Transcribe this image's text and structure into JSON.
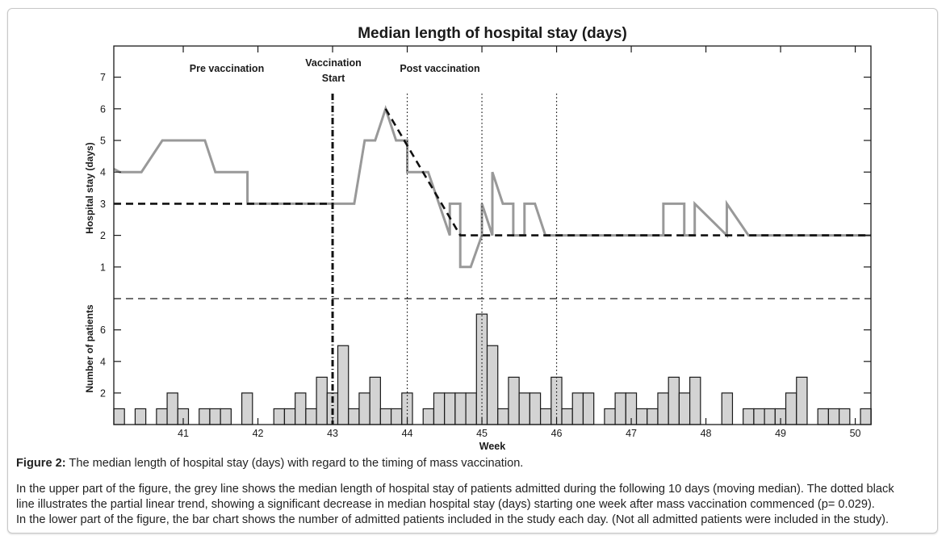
{
  "chart_data": {
    "type": "line+bar",
    "title": "Median length of hospital stay (days)",
    "xlabel": "Week",
    "xlim": [
      40.07,
      50.21
    ],
    "x_ticks": [
      41,
      42,
      43,
      44,
      45,
      46,
      47,
      48,
      49,
      50
    ],
    "x_tick_labels": [
      "41",
      "42",
      "43",
      "44",
      "45",
      "46",
      "47",
      "48",
      "49",
      "50"
    ],
    "grid": false,
    "upper": {
      "type": "line",
      "ylabel": "Hospital stay (days)",
      "ylim": [
        0,
        8
      ],
      "y_ticks": [
        1,
        2,
        3,
        4,
        5,
        6,
        7
      ],
      "y_tick_labels": [
        "1",
        "2",
        "3",
        "4",
        "5",
        "6",
        "7"
      ],
      "annotations": {
        "pre": "Pre vaccination",
        "start_line1": "Vaccination",
        "start_line2": "Start",
        "post": "Post vaccination"
      },
      "vaccination_start_week": 43,
      "dotted_week_markers": [
        44,
        45,
        46
      ],
      "series": [
        {
          "name": "Moving median (grey line)",
          "color": "#999999",
          "x": [
            40.07,
            40.15,
            40.44,
            40.72,
            41.29,
            41.43,
            41.86,
            41.86,
            43.29,
            43.43,
            43.57,
            43.71,
            43.85,
            44.0,
            44.0,
            44.28,
            44.57,
            44.57,
            44.71,
            44.71,
            44.85,
            45.0,
            45.0,
            45.14,
            45.14,
            45.28,
            45.42,
            45.42,
            45.57,
            45.57,
            45.71,
            45.85,
            47.43,
            47.43,
            47.71,
            47.71,
            47.85,
            47.85,
            48.28,
            48.28,
            48.57,
            50.21
          ],
          "y": [
            4.1,
            4,
            4,
            5,
            5,
            4,
            4,
            3,
            3,
            5,
            5,
            6,
            5,
            5,
            4,
            4,
            2,
            3,
            3,
            1,
            1,
            2,
            3,
            2,
            4,
            3,
            3,
            2,
            2,
            3,
            3,
            2,
            2,
            3,
            3,
            2,
            2,
            3,
            2,
            3,
            2,
            2
          ]
        },
        {
          "name": "Partial linear trend (pre)",
          "color": "#111111",
          "x": [
            40.07,
            43.0
          ],
          "y": [
            3,
            3
          ]
        },
        {
          "name": "Partial linear trend (post)",
          "color": "#111111",
          "x": [
            43.71,
            44.71,
            50.21
          ],
          "y": [
            6,
            2,
            2
          ]
        }
      ]
    },
    "lower": {
      "type": "bar",
      "ylabel": "Number of patients",
      "ylim": [
        0,
        8
      ],
      "y_ticks": [
        2,
        4,
        6
      ],
      "y_tick_labels": [
        "2",
        "4",
        "6"
      ],
      "bar_color": "#d3d3d3",
      "day_start_week": 40.07,
      "values": [
        1,
        0,
        1,
        0,
        1,
        2,
        1,
        0,
        1,
        1,
        1,
        0,
        2,
        0,
        0,
        1,
        1,
        2,
        1,
        3,
        2,
        5,
        1,
        2,
        3,
        1,
        1,
        2,
        0,
        1,
        2,
        2,
        2,
        2,
        7,
        5,
        1,
        3,
        2,
        2,
        1,
        3,
        1,
        2,
        2,
        0,
        1,
        2,
        2,
        1,
        1,
        2,
        3,
        2,
        3,
        0,
        0,
        2,
        0,
        1,
        1,
        1,
        1,
        2,
        3,
        0,
        1,
        1,
        1,
        0,
        1
      ]
    }
  },
  "caption": {
    "figure_label": "Figure 2:",
    "figure_title": " The median length of hospital stay (days) with regard to the timing of mass vaccination.",
    "body_line1": "In the upper part of the figure, the grey line shows the median length of hospital stay of patients admitted during the following 10 days (moving median). The dotted black",
    "body_line2": "line illustrates the partial linear trend, showing a significant decrease in median hospital stay (days) starting one week after mass vaccination commenced (p= 0.029).",
    "body_line3": "In the lower part of the figure, the bar chart shows the number of admitted patients included in the study each day. (Not all admitted patients were included in the study)."
  }
}
